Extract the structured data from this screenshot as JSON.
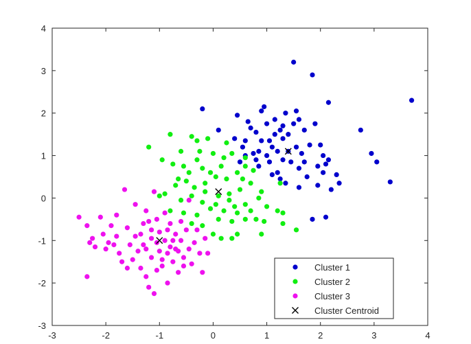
{
  "chart_data": {
    "type": "scatter",
    "title": "",
    "xlabel": "",
    "ylabel": "",
    "xlim": [
      -3,
      4
    ],
    "ylim": [
      -3,
      4
    ],
    "x_ticks": [
      -3,
      -2,
      -1,
      0,
      1,
      2,
      3,
      4
    ],
    "y_ticks": [
      -3,
      -2,
      -1,
      0,
      1,
      2,
      3,
      4
    ],
    "x_tick_labels": [
      "-3",
      "-2",
      "-1",
      "0",
      "1",
      "2",
      "3",
      "4"
    ],
    "y_tick_labels": [
      "-3",
      "-2",
      "-1",
      "0",
      "1",
      "2",
      "3",
      "4"
    ],
    "grid": false,
    "legend_position": "bottom-right",
    "series": [
      {
        "name": "Cluster 1",
        "color": "#0000cc",
        "marker": "dot",
        "points": [
          [
            -0.2,
            2.1
          ],
          [
            0.1,
            1.6
          ],
          [
            0.4,
            1.4
          ],
          [
            0.45,
            1.95
          ],
          [
            0.55,
            1.2
          ],
          [
            0.6,
            1.0
          ],
          [
            0.7,
            1.65
          ],
          [
            0.75,
            1.05
          ],
          [
            0.8,
            0.9
          ],
          [
            0.85,
            0.75
          ],
          [
            0.9,
            1.35
          ],
          [
            0.9,
            2.05
          ],
          [
            0.95,
            2.15
          ],
          [
            1.0,
            1.0
          ],
          [
            1.05,
            0.85
          ],
          [
            1.1,
            1.2
          ],
          [
            1.15,
            1.5
          ],
          [
            1.15,
            1.85
          ],
          [
            1.2,
            0.6
          ],
          [
            1.25,
            1.6
          ],
          [
            1.3,
            1.7
          ],
          [
            1.35,
            2.0
          ],
          [
            1.35,
            0.35
          ],
          [
            1.4,
            1.5
          ],
          [
            1.45,
            0.85
          ],
          [
            1.5,
            1.75
          ],
          [
            1.55,
            2.05
          ],
          [
            1.55,
            1.2
          ],
          [
            1.6,
            0.25
          ],
          [
            1.6,
            0.7
          ],
          [
            1.65,
            1.05
          ],
          [
            1.7,
            0.85
          ],
          [
            1.75,
            0.5
          ],
          [
            1.8,
            1.25
          ],
          [
            1.85,
            2.9
          ],
          [
            1.85,
            -0.5
          ],
          [
            1.9,
            1.75
          ],
          [
            1.95,
            0.3
          ],
          [
            2.0,
            1.25
          ],
          [
            2.05,
            0.6
          ],
          [
            2.05,
            1.0
          ],
          [
            2.1,
            0.8
          ],
          [
            2.1,
            -0.45
          ],
          [
            2.15,
            0.9
          ],
          [
            2.15,
            2.25
          ],
          [
            2.2,
            0.2
          ],
          [
            2.3,
            0.55
          ],
          [
            2.35,
            0.35
          ],
          [
            2.75,
            1.6
          ],
          [
            2.95,
            1.05
          ],
          [
            3.05,
            0.85
          ],
          [
            3.3,
            0.38
          ],
          [
            3.7,
            2.3
          ],
          [
            1.5,
            3.2
          ],
          [
            1.2,
            1.1
          ],
          [
            1.3,
            0.9
          ],
          [
            0.6,
            1.35
          ],
          [
            0.8,
            1.55
          ],
          [
            1.0,
            1.75
          ],
          [
            1.1,
            0.55
          ],
          [
            1.4,
            1.1
          ],
          [
            1.7,
            1.6
          ],
          [
            1.05,
            1.35
          ],
          [
            1.25,
            0.45
          ],
          [
            1.6,
            1.85
          ],
          [
            1.95,
            0.75
          ],
          [
            0.65,
            1.8
          ],
          [
            0.5,
            0.85
          ],
          [
            0.85,
            1.1
          ],
          [
            1.3,
            1.4
          ]
        ]
      },
      {
        "name": "Cluster 2",
        "color": "#11ee11",
        "marker": "dot",
        "points": [
          [
            -1.2,
            1.2
          ],
          [
            -0.8,
            1.5
          ],
          [
            -0.6,
            1.1
          ],
          [
            -0.4,
            1.45
          ],
          [
            -0.3,
            1.35
          ],
          [
            -0.1,
            1.4
          ],
          [
            -0.75,
            0.8
          ],
          [
            -0.55,
            0.75
          ],
          [
            -0.3,
            0.9
          ],
          [
            -0.2,
            0.7
          ],
          [
            0.0,
            1.05
          ],
          [
            0.2,
            0.95
          ],
          [
            -0.7,
            0.3
          ],
          [
            -0.5,
            0.4
          ],
          [
            -0.35,
            0.25
          ],
          [
            -0.15,
            0.35
          ],
          [
            0.05,
            0.5
          ],
          [
            0.25,
            0.45
          ],
          [
            0.45,
            0.6
          ],
          [
            -0.9,
            0.1
          ],
          [
            -0.6,
            -0.05
          ],
          [
            -0.4,
            0.05
          ],
          [
            -0.2,
            -0.1
          ],
          [
            0.1,
            0.05
          ],
          [
            0.3,
            0.1
          ],
          [
            0.5,
            0.2
          ],
          [
            0.7,
            0.35
          ],
          [
            -0.8,
            -0.3
          ],
          [
            -0.55,
            -0.35
          ],
          [
            -0.3,
            -0.4
          ],
          [
            -0.05,
            -0.25
          ],
          [
            0.2,
            -0.3
          ],
          [
            0.4,
            -0.2
          ],
          [
            0.6,
            -0.15
          ],
          [
            0.85,
            0.0
          ],
          [
            -0.4,
            -0.6
          ],
          [
            -0.2,
            -0.65
          ],
          [
            0.1,
            -0.5
          ],
          [
            0.35,
            -0.55
          ],
          [
            0.6,
            -0.5
          ],
          [
            0.0,
            -0.85
          ],
          [
            0.15,
            -0.95
          ],
          [
            0.35,
            -0.95
          ],
          [
            0.45,
            -0.85
          ],
          [
            0.8,
            -0.5
          ],
          [
            0.9,
            -0.85
          ],
          [
            1.2,
            -0.3
          ],
          [
            1.3,
            -0.35
          ],
          [
            1.3,
            -0.6
          ],
          [
            1.55,
            -0.75
          ],
          [
            0.35,
            1.05
          ],
          [
            0.6,
            0.95
          ],
          [
            0.75,
            0.65
          ],
          [
            1.25,
            0.35
          ],
          [
            -0.95,
            0.9
          ],
          [
            -1.0,
            0.05
          ],
          [
            -0.15,
            0.15
          ],
          [
            0.15,
            0.75
          ],
          [
            0.3,
            -0.05
          ],
          [
            0.55,
            0.45
          ],
          [
            -0.45,
            0.6
          ],
          [
            -0.05,
            0.6
          ],
          [
            0.25,
            1.3
          ],
          [
            0.45,
            -0.35
          ],
          [
            0.05,
            -0.15
          ],
          [
            -0.25,
            1.1
          ],
          [
            0.7,
            -0.3
          ],
          [
            0.9,
            0.15
          ],
          [
            1.0,
            -0.2
          ],
          [
            0.6,
            0.75
          ],
          [
            -0.65,
            0.45
          ],
          [
            0.95,
            -0.55
          ]
        ]
      },
      {
        "name": "Cluster 3",
        "color": "#ee11ee",
        "marker": "dot",
        "points": [
          [
            -2.5,
            -0.45
          ],
          [
            -2.35,
            -0.65
          ],
          [
            -2.25,
            -0.95
          ],
          [
            -2.3,
            -1.05
          ],
          [
            -2.2,
            -1.15
          ],
          [
            -2.35,
            -1.85
          ],
          [
            -2.1,
            -0.45
          ],
          [
            -2.05,
            -0.85
          ],
          [
            -2.0,
            -1.2
          ],
          [
            -1.9,
            -0.65
          ],
          [
            -1.95,
            -1.05
          ],
          [
            -1.8,
            -0.4
          ],
          [
            -1.8,
            -0.9
          ],
          [
            -1.75,
            -1.3
          ],
          [
            -1.7,
            -1.5
          ],
          [
            -1.65,
            0.2
          ],
          [
            -1.6,
            -0.7
          ],
          [
            -1.55,
            -1.1
          ],
          [
            -1.5,
            -1.45
          ],
          [
            -1.45,
            -0.15
          ],
          [
            -1.45,
            -0.9
          ],
          [
            -1.4,
            -1.25
          ],
          [
            -1.35,
            -1.65
          ],
          [
            -1.3,
            -0.6
          ],
          [
            -1.3,
            -1.1
          ],
          [
            -1.25,
            -0.3
          ],
          [
            -1.25,
            -1.85
          ],
          [
            -1.2,
            -2.1
          ],
          [
            -1.15,
            -0.75
          ],
          [
            -1.15,
            -1.4
          ],
          [
            -1.1,
            -2.25
          ],
          [
            -1.1,
            0.15
          ],
          [
            -1.05,
            -0.5
          ],
          [
            -1.05,
            -1.05
          ],
          [
            -1.0,
            -0.8
          ],
          [
            -1.0,
            -1.25
          ],
          [
            -0.95,
            -1.6
          ],
          [
            -0.9,
            -0.35
          ],
          [
            -0.9,
            -1.0
          ],
          [
            -0.85,
            -1.3
          ],
          [
            -0.85,
            -2.0
          ],
          [
            -0.8,
            -0.6
          ],
          [
            -0.8,
            -1.15
          ],
          [
            -0.75,
            -1.5
          ],
          [
            -0.7,
            -0.85
          ],
          [
            -0.7,
            -1.2
          ],
          [
            -0.65,
            -1.75
          ],
          [
            -0.6,
            -0.55
          ],
          [
            -0.6,
            -1.0
          ],
          [
            -0.55,
            -1.4
          ],
          [
            -0.5,
            -0.75
          ],
          [
            -0.45,
            -1.2
          ],
          [
            -0.45,
            -0.05
          ],
          [
            -0.4,
            -1.55
          ],
          [
            -0.35,
            -1.05
          ],
          [
            -0.3,
            -0.75
          ],
          [
            -0.25,
            -1.3
          ],
          [
            -0.2,
            -1.75
          ],
          [
            -0.15,
            -0.95
          ],
          [
            -0.1,
            -1.3
          ],
          [
            -1.2,
            -0.55
          ],
          [
            -1.35,
            -0.85
          ],
          [
            -0.95,
            -1.45
          ],
          [
            -0.75,
            -1.0
          ],
          [
            -1.05,
            -1.7
          ],
          [
            -0.55,
            -1.6
          ],
          [
            -1.6,
            -1.65
          ],
          [
            -1.85,
            -1.1
          ],
          [
            -0.65,
            -1.25
          ],
          [
            -1.25,
            -1.2
          ],
          [
            -0.85,
            -0.75
          ],
          [
            -1.15,
            -0.95
          ]
        ]
      },
      {
        "name": "Cluster Centroid",
        "color": "#000000",
        "marker": "x",
        "points": [
          [
            1.4,
            1.1
          ],
          [
            0.1,
            0.15
          ],
          [
            -1.0,
            -1.0
          ]
        ]
      }
    ]
  },
  "legend": {
    "items": [
      {
        "label": "Cluster 1",
        "color": "#0000cc",
        "marker": "dot"
      },
      {
        "label": "Cluster 2",
        "color": "#11ee11",
        "marker": "dot"
      },
      {
        "label": "Cluster 3",
        "color": "#ee11ee",
        "marker": "dot"
      },
      {
        "label": "Cluster Centroid",
        "color": "#000000",
        "marker": "x"
      }
    ]
  },
  "colors": {
    "axis": "#262626",
    "background": "#ffffff"
  }
}
